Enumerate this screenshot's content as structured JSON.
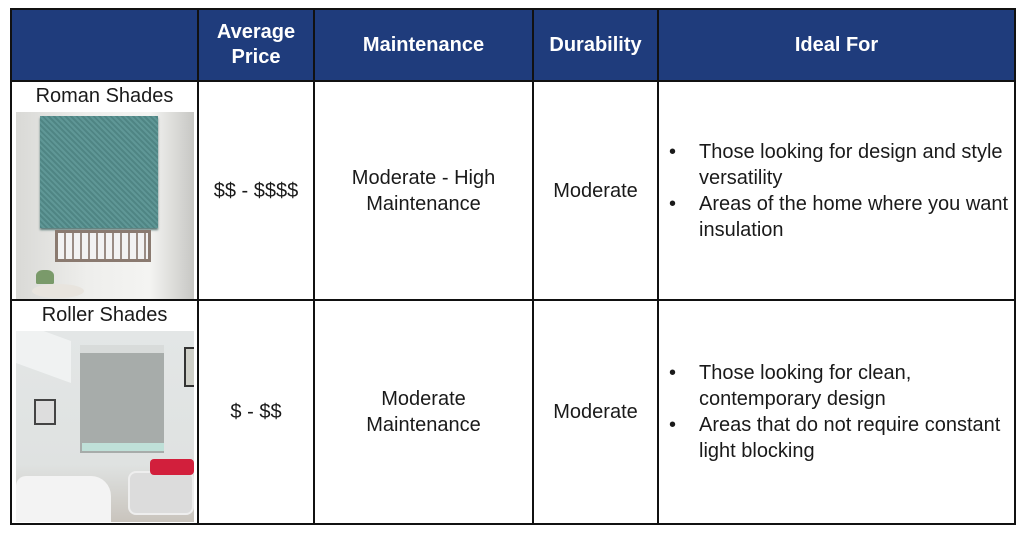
{
  "header": {
    "col0": "",
    "price": "Average Price",
    "maintenance": "Maintenance",
    "durability": "Durability",
    "ideal": "Ideal For"
  },
  "colors": {
    "header_bg": "#1f3c7c",
    "header_text": "#ffffff"
  },
  "rows": [
    {
      "name": "Roman Shades",
      "price": "$$ - $$$$",
      "maintenance": "Moderate - High Maintenance",
      "durability": "Moderate",
      "ideal": [
        "Those looking for design and style versatility",
        "Areas of the home where you want insulation"
      ]
    },
    {
      "name": "Roller Shades",
      "price": "$ - $$",
      "maintenance": "Moderate Maintenance",
      "durability": "Moderate",
      "ideal": [
        "Those looking for clean, contemporary design",
        "Areas that do not require constant light blocking"
      ]
    }
  ]
}
